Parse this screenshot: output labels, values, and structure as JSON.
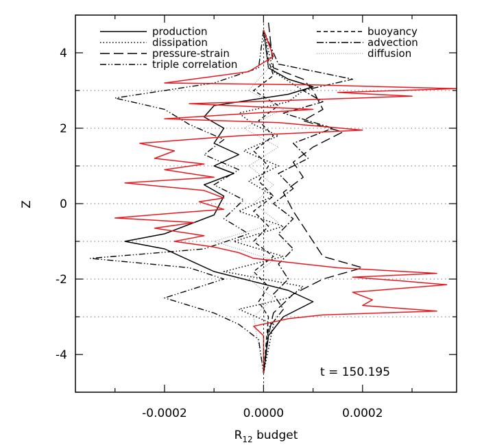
{
  "chart_data": {
    "type": "line",
    "xlabel": "R",
    "xlabel_sub": "12",
    "xlabel_tail": " budget",
    "ylabel": "Z",
    "xlim": [
      -0.00038,
      0.00039
    ],
    "ylim": [
      -5,
      5
    ],
    "x_ticks": [
      {
        "value": -0.0002,
        "label": "-0.0002"
      },
      {
        "value": 0.0,
        "label": "0.0000"
      },
      {
        "value": 0.0002,
        "label": "0.0002"
      }
    ],
    "y_ticks": [
      {
        "value": -4,
        "label": "-4"
      },
      {
        "value": -2,
        "label": "-2"
      },
      {
        "value": 0,
        "label": "0"
      },
      {
        "value": 2,
        "label": "2"
      },
      {
        "value": 4,
        "label": "4"
      }
    ],
    "hlines": [
      -3,
      -2,
      -1,
      0,
      1,
      2,
      3
    ],
    "annotation": "t = 150.195",
    "series": [
      {
        "name": "production",
        "color": "#000000",
        "style": "solid",
        "points": [
          [
            0,
            4.6
          ],
          [
            1e-05,
            3.6
          ],
          [
            5e-05,
            3.3
          ],
          [
            0.0001,
            3.1
          ],
          [
            5e-05,
            2.9
          ],
          [
            -0.0001,
            2.6
          ],
          [
            -0.00012,
            2.3
          ],
          [
            -8e-05,
            2.0
          ],
          [
            -0.0001,
            1.6
          ],
          [
            -5e-05,
            1.3
          ],
          [
            -0.0001,
            1.0
          ],
          [
            -6e-05,
            0.8
          ],
          [
            -0.00012,
            0.5
          ],
          [
            -8e-05,
            0.2
          ],
          [
            -0.0001,
            -0.3
          ],
          [
            -0.0002,
            -0.8
          ],
          [
            -0.00028,
            -1.0
          ],
          [
            -0.0002,
            -1.2
          ],
          [
            -0.00015,
            -1.5
          ],
          [
            -0.0001,
            -1.8
          ],
          [
            5e-05,
            -2.3
          ],
          [
            0.0001,
            -2.6
          ],
          [
            4e-05,
            -3.0
          ],
          [
            1e-05,
            -3.5
          ],
          [
            0,
            -4.5
          ]
        ]
      },
      {
        "name": "dissipation",
        "color": "#000000",
        "style": "dotted",
        "points": [
          [
            0,
            4.6
          ],
          [
            2e-05,
            3.5
          ],
          [
            8e-05,
            3.0
          ],
          [
            5e-05,
            2.7
          ],
          [
            -5e-05,
            2.4
          ],
          [
            -2e-05,
            2.1
          ],
          [
            3e-05,
            1.8
          ],
          [
            -4e-05,
            1.4
          ],
          [
            3e-05,
            1.0
          ],
          [
            -3e-05,
            0.6
          ],
          [
            2e-05,
            0.2
          ],
          [
            -5e-05,
            -0.2
          ],
          [
            4e-05,
            -0.6
          ],
          [
            -6e-05,
            -1.0
          ],
          [
            4e-05,
            -1.4
          ],
          [
            -8e-05,
            -1.8
          ],
          [
            8e-05,
            -2.2
          ],
          [
            5e-05,
            -2.5
          ],
          [
            -5e-05,
            -2.8
          ],
          [
            2e-05,
            -3.2
          ],
          [
            0,
            -4.5
          ]
        ]
      },
      {
        "name": "pressure-strain",
        "color": "#000000",
        "style": "longdash",
        "points": [
          [
            1e-05,
            4.8
          ],
          [
            2e-05,
            3.6
          ],
          [
            8e-05,
            3.3
          ],
          [
            0.0001,
            3.0
          ],
          [
            0.00012,
            2.5
          ],
          [
            8e-05,
            2.2
          ],
          [
            0.00016,
            1.9
          ],
          [
            0.0001,
            1.5
          ],
          [
            6e-05,
            1.1
          ],
          [
            8e-05,
            0.7
          ],
          [
            4e-05,
            0.3
          ],
          [
            6e-05,
            -0.2
          ],
          [
            8e-05,
            -0.6
          ],
          [
            0.0001,
            -1.0
          ],
          [
            0.00012,
            -1.4
          ],
          [
            0.0002,
            -1.7
          ],
          [
            0.00012,
            -2.0
          ],
          [
            6e-05,
            -2.4
          ],
          [
            2e-05,
            -2.9
          ],
          [
            1e-05,
            -3.5
          ],
          [
            0,
            -4.5
          ]
        ]
      },
      {
        "name": "triple correlation",
        "color": "#000000",
        "style": "dashdotdot",
        "points": [
          [
            0,
            4.6
          ],
          [
            -1e-05,
            3.6
          ],
          [
            -0.0001,
            3.2
          ],
          [
            -0.0003,
            2.8
          ],
          [
            -0.0002,
            2.5
          ],
          [
            -0.00015,
            2.1
          ],
          [
            -8e-05,
            1.7
          ],
          [
            -0.00012,
            1.3
          ],
          [
            -5e-05,
            0.9
          ],
          [
            -0.0001,
            0.5
          ],
          [
            -4e-05,
            0.1
          ],
          [
            -8e-05,
            -0.4
          ],
          [
            -3e-05,
            -0.8
          ],
          [
            -0.00012,
            -1.2
          ],
          [
            -0.00035,
            -1.45
          ],
          [
            -0.00015,
            -1.7
          ],
          [
            -8e-05,
            -2.0
          ],
          [
            -0.0002,
            -2.5
          ],
          [
            -0.0001,
            -2.9
          ],
          [
            -5e-05,
            -3.2
          ],
          [
            -1e-05,
            -3.6
          ],
          [
            0,
            -4.5
          ]
        ]
      },
      {
        "name": "buoyancy",
        "color": "#000000",
        "style": "dashed",
        "points": [
          [
            0,
            4.6
          ],
          [
            1e-05,
            3.8
          ],
          [
            2e-05,
            3.4
          ],
          [
            -2e-05,
            3.0
          ],
          [
            3e-05,
            2.6
          ],
          [
            -1e-05,
            2.2
          ],
          [
            2e-05,
            1.8
          ],
          [
            -2e-05,
            1.4
          ],
          [
            1e-05,
            1.0
          ],
          [
            -1e-05,
            0.6
          ],
          [
            2e-05,
            0.2
          ],
          [
            -2e-05,
            -0.2
          ],
          [
            1e-05,
            -0.6
          ],
          [
            -2e-05,
            -1.0
          ],
          [
            2e-05,
            -1.4
          ],
          [
            -2e-05,
            -1.8
          ],
          [
            1e-05,
            -2.2
          ],
          [
            -1e-05,
            -2.6
          ],
          [
            1e-05,
            -3.0
          ],
          [
            0,
            -4.5
          ]
        ]
      },
      {
        "name": "advection",
        "color": "#000000",
        "style": "dashdot",
        "points": [
          [
            0,
            4.6
          ],
          [
            3e-05,
            3.7
          ],
          [
            0.00018,
            3.3
          ],
          [
            8e-05,
            3.0
          ],
          [
            0.00012,
            2.7
          ],
          [
            4e-05,
            2.4
          ],
          [
            0.00014,
            2.0
          ],
          [
            6e-05,
            1.6
          ],
          [
            9e-05,
            1.2
          ],
          [
            3e-05,
            0.8
          ],
          [
            6e-05,
            0.4
          ],
          [
            2e-05,
            0.0
          ],
          [
            6e-05,
            -0.4
          ],
          [
            3e-05,
            -0.8
          ],
          [
            6e-05,
            -1.2
          ],
          [
            3e-05,
            -1.6
          ],
          [
            5e-05,
            -2.0
          ],
          [
            2e-05,
            -2.4
          ],
          [
            4e-05,
            -2.8
          ],
          [
            1e-05,
            -3.3
          ],
          [
            0,
            -4.5
          ]
        ]
      },
      {
        "name": "diffusion",
        "color": "#888888",
        "style": "thindot",
        "points": [
          [
            0,
            4.6
          ],
          [
            1e-05,
            3.6
          ],
          [
            -3e-05,
            3.0
          ],
          [
            4e-05,
            2.5
          ],
          [
            -4e-05,
            2.0
          ],
          [
            3e-05,
            1.5
          ],
          [
            -3e-05,
            1.0
          ],
          [
            2e-05,
            0.5
          ],
          [
            -2e-05,
            0.0
          ],
          [
            3e-05,
            -0.5
          ],
          [
            -0.0001,
            -1.0
          ],
          [
            2e-05,
            -1.5
          ],
          [
            -3e-05,
            -2.0
          ],
          [
            2e-05,
            -2.5
          ],
          [
            -2e-05,
            -3.0
          ],
          [
            0,
            -4.5
          ]
        ]
      },
      {
        "name": "",
        "color": "#e8161c",
        "style": "solid",
        "points": [
          [
            0,
            4.6
          ],
          [
            2e-05,
            3.9
          ],
          [
            -3e-05,
            3.5
          ],
          [
            -0.0002,
            3.2
          ],
          [
            0.0001,
            3.15
          ],
          [
            0.00039,
            3.05
          ],
          [
            0.00015,
            2.95
          ],
          [
            0.0003,
            2.85
          ],
          [
            -0.00015,
            2.65
          ],
          [
            0.0001,
            2.5
          ],
          [
            -0.0002,
            2.25
          ],
          [
            3e-05,
            2.15
          ],
          [
            0.0002,
            1.95
          ],
          [
            -5e-05,
            1.8
          ],
          [
            -0.00025,
            1.6
          ],
          [
            -0.00018,
            1.4
          ],
          [
            -0.00022,
            1.2
          ],
          [
            -0.00012,
            1.05
          ],
          [
            -0.0002,
            0.9
          ],
          [
            -0.0001,
            0.7
          ],
          [
            -0.00028,
            0.55
          ],
          [
            -0.00012,
            0.35
          ],
          [
            -8e-05,
            0.15
          ],
          [
            -0.00013,
            0.05
          ],
          [
            -8e-05,
            -0.15
          ],
          [
            -0.00018,
            -0.25
          ],
          [
            -0.0003,
            -0.38
          ],
          [
            -0.00014,
            -0.5
          ],
          [
            -0.00022,
            -0.65
          ],
          [
            -0.00012,
            -0.85
          ],
          [
            -0.00018,
            -1.0
          ],
          [
            -0.0001,
            -1.15
          ],
          [
            -5e-05,
            -1.3
          ],
          [
            -2e-05,
            -1.45
          ],
          [
            8e-05,
            -1.6
          ],
          [
            0.00015,
            -1.7
          ],
          [
            0.00035,
            -1.85
          ],
          [
            0.00018,
            -1.95
          ],
          [
            0.00028,
            -2.05
          ],
          [
            0.00037,
            -2.15
          ],
          [
            0.00018,
            -2.35
          ],
          [
            0.00022,
            -2.55
          ],
          [
            0.0002,
            -2.7
          ],
          [
            0.00035,
            -2.85
          ],
          [
            0.00012,
            -2.95
          ],
          [
            5e-05,
            -3.05
          ],
          [
            -2e-05,
            -3.25
          ],
          [
            0,
            -3.5
          ],
          [
            0,
            -4.5
          ]
        ]
      }
    ],
    "legend_left": [
      {
        "label": "production",
        "style": "solid"
      },
      {
        "label": "dissipation",
        "style": "dotted"
      },
      {
        "label": "pressure-strain",
        "style": "longdash"
      },
      {
        "label": "triple correlation",
        "style": "dashdotdot"
      }
    ],
    "legend_right": [
      {
        "label": "buoyancy",
        "style": "dashed"
      },
      {
        "label": "advection",
        "style": "dashdot"
      },
      {
        "label": "diffusion",
        "style": "thindot"
      }
    ]
  }
}
